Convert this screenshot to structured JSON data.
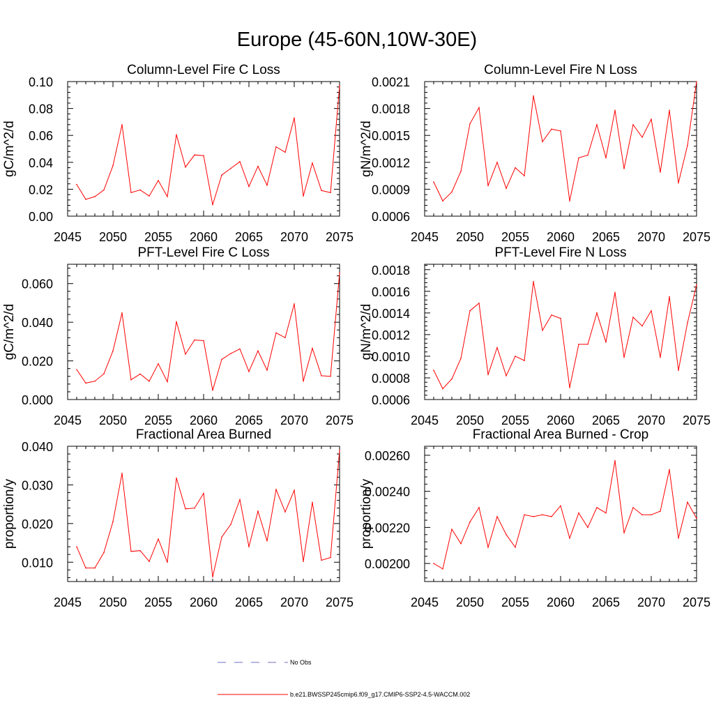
{
  "colors": {
    "series": "#ff0000",
    "obs": "#6e6ec8",
    "axis": "#000000"
  },
  "figure_title": "Europe (45-60N,10W-30E)",
  "legend": {
    "obs_label": "No Obs",
    "model_label": "b.e21.BWSSP245cmip6.f09_g17.CMIP6-SSP2-4.5-WACCM.002"
  },
  "chart_data": [
    {
      "type": "line",
      "title": "Column-Level Fire C Loss",
      "xlabel": "",
      "ylabel": "gC/m^2/d",
      "xlim": [
        2045,
        2075
      ],
      "ylim": [
        0.0,
        0.1
      ],
      "xticks": [
        2045,
        2050,
        2055,
        2060,
        2065,
        2070,
        2075
      ],
      "xticklabels": [
        "2045",
        "2050",
        "2055",
        "2060",
        "2065",
        "2070",
        "2075"
      ],
      "yticks": [
        0.0,
        0.02,
        0.04,
        0.06,
        0.08,
        0.1
      ],
      "yticklabels": [
        "0.00",
        "0.02",
        "0.04",
        "0.06",
        "0.08",
        "0.10"
      ],
      "series": [
        {
          "name": "b.e21.BWSSP245cmip6.f09_g17.CMIP6-SSP2-4.5-WACCM.002",
          "x": [
            2046,
            2047,
            2048,
            2049,
            2050,
            2051,
            2052,
            2053,
            2054,
            2055,
            2056,
            2057,
            2058,
            2059,
            2060,
            2061,
            2062,
            2063,
            2064,
            2065,
            2066,
            2067,
            2068,
            2069,
            2070,
            2071,
            2072,
            2073,
            2074,
            2075
          ],
          "values": [
            0.0235,
            0.0125,
            0.0145,
            0.0195,
            0.0375,
            0.068,
            0.0175,
            0.0195,
            0.015,
            0.0265,
            0.0145,
            0.0605,
            0.0365,
            0.0455,
            0.045,
            0.0085,
            0.0305,
            0.0355,
            0.0405,
            0.022,
            0.037,
            0.023,
            0.0515,
            0.0475,
            0.073,
            0.015,
            0.0395,
            0.019,
            0.0175,
            0.097
          ]
        }
      ]
    },
    {
      "type": "line",
      "title": "Column-Level Fire N Loss",
      "xlabel": "",
      "ylabel": "gN/m^2/d",
      "xlim": [
        2045,
        2075
      ],
      "ylim": [
        0.0006,
        0.0021
      ],
      "xticks": [
        2045,
        2050,
        2055,
        2060,
        2065,
        2070,
        2075
      ],
      "xticklabels": [
        "2045",
        "2050",
        "2055",
        "2060",
        "2065",
        "2070",
        "2075"
      ],
      "yticks": [
        0.0006,
        0.0009,
        0.0012,
        0.0015,
        0.0018,
        0.0021
      ],
      "yticklabels": [
        "0.0006",
        "0.0009",
        "0.0012",
        "0.0015",
        "0.0018",
        "0.0021"
      ],
      "series": [
        {
          "name": "b.e21.BWSSP245cmip6.f09_g17.CMIP6-SSP2-4.5-WACCM.002",
          "x": [
            2046,
            2047,
            2048,
            2049,
            2050,
            2051,
            2052,
            2053,
            2054,
            2055,
            2056,
            2057,
            2058,
            2059,
            2060,
            2061,
            2062,
            2063,
            2064,
            2065,
            2066,
            2067,
            2068,
            2069,
            2070,
            2071,
            2072,
            2073,
            2074,
            2075
          ],
          "values": [
            0.00098,
            0.00077,
            0.00087,
            0.0011,
            0.00163,
            0.00181,
            0.00094,
            0.0012,
            0.00091,
            0.00114,
            0.00105,
            0.00194,
            0.00143,
            0.00157,
            0.00155,
            0.00077,
            0.00125,
            0.00128,
            0.00162,
            0.00125,
            0.00178,
            0.00113,
            0.00162,
            0.00148,
            0.00168,
            0.00109,
            0.00178,
            0.00097,
            0.00139,
            0.0021
          ]
        }
      ]
    },
    {
      "type": "line",
      "title": "PFT-Level Fire C Loss",
      "xlabel": "",
      "ylabel": "gC/m^2/d",
      "xlim": [
        2045,
        2075
      ],
      "ylim": [
        0.0,
        0.07
      ],
      "xticks": [
        2045,
        2050,
        2055,
        2060,
        2065,
        2070,
        2075
      ],
      "xticklabels": [
        "2045",
        "2050",
        "2055",
        "2060",
        "2065",
        "2070",
        "2075"
      ],
      "yticks": [
        0.0,
        0.02,
        0.04,
        0.06
      ],
      "yticklabels": [
        "0.000",
        "0.020",
        "0.040",
        "0.060"
      ],
      "series": [
        {
          "name": "b.e21.BWSSP245cmip6.f09_g17.CMIP6-SSP2-4.5-WACCM.002",
          "x": [
            2046,
            2047,
            2048,
            2049,
            2050,
            2051,
            2052,
            2053,
            2054,
            2055,
            2056,
            2057,
            2058,
            2059,
            2060,
            2061,
            2062,
            2063,
            2064,
            2065,
            2066,
            2067,
            2068,
            2069,
            2070,
            2071,
            2072,
            2073,
            2074,
            2075
          ],
          "values": [
            0.0155,
            0.0085,
            0.0095,
            0.0133,
            0.0252,
            0.0448,
            0.0102,
            0.0132,
            0.0095,
            0.0185,
            0.0092,
            0.0403,
            0.0235,
            0.0308,
            0.0305,
            0.0048,
            0.0208,
            0.0238,
            0.0262,
            0.0145,
            0.0252,
            0.0152,
            0.0345,
            0.032,
            0.0495,
            0.0095,
            0.0265,
            0.0123,
            0.012,
            0.0655
          ]
        }
      ]
    },
    {
      "type": "line",
      "title": "PFT-Level Fire N Loss",
      "xlabel": "",
      "ylabel": "gN/m^2/d",
      "xlim": [
        2045,
        2075
      ],
      "ylim": [
        0.0006,
        0.00185
      ],
      "xticks": [
        2045,
        2050,
        2055,
        2060,
        2065,
        2070,
        2075
      ],
      "xticklabels": [
        "2045",
        "2050",
        "2055",
        "2060",
        "2065",
        "2070",
        "2075"
      ],
      "yticks": [
        0.0006,
        0.0008,
        0.001,
        0.0012,
        0.0014,
        0.0016,
        0.0018
      ],
      "yticklabels": [
        "0.0006",
        "0.0008",
        "0.0010",
        "0.0012",
        "0.0014",
        "0.0016",
        "0.0018"
      ],
      "series": [
        {
          "name": "b.e21.BWSSP245cmip6.f09_g17.CMIP6-SSP2-4.5-WACCM.002",
          "x": [
            2046,
            2047,
            2048,
            2049,
            2050,
            2051,
            2052,
            2053,
            2054,
            2055,
            2056,
            2057,
            2058,
            2059,
            2060,
            2061,
            2062,
            2063,
            2064,
            2065,
            2066,
            2067,
            2068,
            2069,
            2070,
            2071,
            2072,
            2073,
            2074,
            2075
          ],
          "values": [
            0.00087,
            0.0007,
            0.00079,
            0.00098,
            0.00142,
            0.00149,
            0.00083,
            0.00108,
            0.00082,
            0.001,
            0.00096,
            0.00169,
            0.00124,
            0.00138,
            0.00135,
            0.00071,
            0.00111,
            0.00111,
            0.0014,
            0.00113,
            0.00159,
            0.00099,
            0.00136,
            0.00128,
            0.00142,
            0.00099,
            0.00155,
            0.00087,
            0.00131,
            0.00166
          ]
        }
      ]
    },
    {
      "type": "line",
      "title": "Fractional Area Burned",
      "xlabel": "",
      "ylabel": "proportion/y",
      "xlim": [
        2045,
        2075
      ],
      "ylim": [
        0.005,
        0.04
      ],
      "xticks": [
        2045,
        2050,
        2055,
        2060,
        2065,
        2070,
        2075
      ],
      "xticklabels": [
        "2045",
        "2050",
        "2055",
        "2060",
        "2065",
        "2070",
        "2075"
      ],
      "yticks": [
        0.01,
        0.02,
        0.03,
        0.04
      ],
      "yticklabels": [
        "0.010",
        "0.020",
        "0.030",
        "0.040"
      ],
      "series": [
        {
          "name": "b.e21.BWSSP245cmip6.f09_g17.CMIP6-SSP2-4.5-WACCM.002",
          "x": [
            2046,
            2047,
            2048,
            2049,
            2050,
            2051,
            2052,
            2053,
            2054,
            2055,
            2056,
            2057,
            2058,
            2059,
            2060,
            2061,
            2062,
            2063,
            2064,
            2065,
            2066,
            2067,
            2068,
            2069,
            2070,
            2071,
            2072,
            2073,
            2074,
            2075
          ],
          "values": [
            0.014,
            0.0085,
            0.0085,
            0.0125,
            0.0205,
            0.033,
            0.0128,
            0.013,
            0.0102,
            0.016,
            0.01,
            0.0318,
            0.0238,
            0.024,
            0.0278,
            0.0062,
            0.0165,
            0.0198,
            0.0262,
            0.014,
            0.0232,
            0.0155,
            0.0288,
            0.023,
            0.0286,
            0.0102,
            0.0255,
            0.0105,
            0.0112,
            0.039
          ]
        }
      ]
    },
    {
      "type": "line",
      "title": "Fractional Area Burned - Crop",
      "xlabel": "",
      "ylabel": "proportion/y",
      "xlim": [
        2045,
        2075
      ],
      "ylim": [
        0.0019,
        0.00265
      ],
      "xticks": [
        2045,
        2050,
        2055,
        2060,
        2065,
        2070,
        2075
      ],
      "xticklabels": [
        "2045",
        "2050",
        "2055",
        "2060",
        "2065",
        "2070",
        "2075"
      ],
      "yticks": [
        0.002,
        0.0022,
        0.0024,
        0.0026
      ],
      "yticklabels": [
        "0.00200",
        "0.00220",
        "0.00240",
        "0.00260"
      ],
      "series": [
        {
          "name": "b.e21.BWSSP245cmip6.f09_g17.CMIP6-SSP2-4.5-WACCM.002",
          "x": [
            2046,
            2047,
            2048,
            2049,
            2050,
            2051,
            2052,
            2053,
            2054,
            2055,
            2056,
            2057,
            2058,
            2059,
            2060,
            2061,
            2062,
            2063,
            2064,
            2065,
            2066,
            2067,
            2068,
            2069,
            2070,
            2071,
            2072,
            2073,
            2074,
            2075
          ],
          "values": [
            0.002,
            0.00197,
            0.00219,
            0.00211,
            0.00223,
            0.00231,
            0.00209,
            0.00226,
            0.00216,
            0.00209,
            0.00227,
            0.00226,
            0.00227,
            0.00226,
            0.00232,
            0.00214,
            0.00228,
            0.0022,
            0.00231,
            0.00228,
            0.00257,
            0.00217,
            0.00231,
            0.00227,
            0.00227,
            0.00229,
            0.00252,
            0.00214,
            0.00234,
            0.00225
          ]
        }
      ]
    }
  ]
}
